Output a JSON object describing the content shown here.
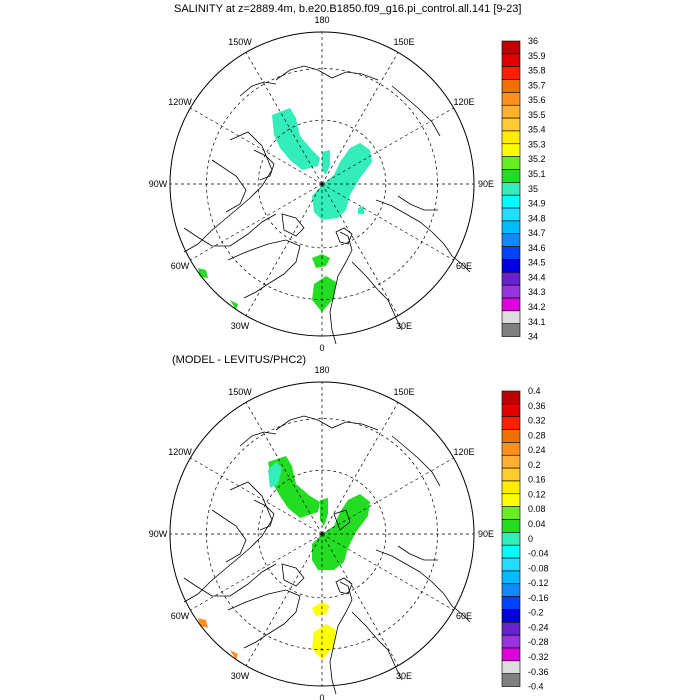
{
  "panels": [
    {
      "title": "SALINITY at z=2889.4m, b.e20.B1850.f09_g16.pi_control.all.141 [9-23]",
      "lon_labels": [
        "180",
        "150E",
        "120E",
        "90E",
        "60E",
        "30E",
        "0",
        "30W",
        "60W",
        "90W",
        "120W",
        "150W"
      ],
      "colorbar": {
        "labels": [
          "36",
          "35.9",
          "35.8",
          "35.7",
          "35.6",
          "35.5",
          "35.4",
          "35.3",
          "35.2",
          "35.1",
          "35",
          "34.9",
          "34.8",
          "34.7",
          "34.6",
          "34.5",
          "34.4",
          "34.3",
          "34.2",
          "34.1",
          "34"
        ],
        "colors": [
          "#c00000",
          "#e00000",
          "#ff2000",
          "#f07000",
          "#ff9020",
          "#ffb030",
          "#ffcc30",
          "#ffee00",
          "#ffff00",
          "#66ee22",
          "#22dd22",
          "#33eebb",
          "#00ffff",
          "#22ddff",
          "#00bbff",
          "#1188ff",
          "#0044ff",
          "#0000dd",
          "#6622cc",
          "#9933dd",
          "#dd00dd",
          "#dddddd",
          "#808080"
        ]
      },
      "field_color": "#33eebb",
      "green_color": "#22dd22"
    },
    {
      "title": "(MODEL - LEVITUS/PHC2)",
      "lon_labels": [
        "180",
        "150E",
        "120E",
        "90E",
        "60E",
        "30E",
        "0",
        "30W",
        "60W",
        "90W",
        "120W",
        "150W"
      ],
      "colorbar": {
        "labels": [
          "0.4",
          "0.36",
          "0.32",
          "0.28",
          "0.24",
          "0.2",
          "0.16",
          "0.12",
          "0.08",
          "0.04",
          "0",
          "-0.04",
          "-0.08",
          "-0.12",
          "-0.16",
          "-0.2",
          "-0.24",
          "-0.28",
          "-0.32",
          "-0.36",
          "-0.4"
        ],
        "colors": [
          "#c00000",
          "#e00000",
          "#ff2000",
          "#f07000",
          "#ff9020",
          "#ffb030",
          "#ffcc30",
          "#ffee00",
          "#ffff00",
          "#66ee22",
          "#22dd22",
          "#33eebb",
          "#00ffff",
          "#22ddff",
          "#00bbff",
          "#1188ff",
          "#0044ff",
          "#0000dd",
          "#6622cc",
          "#9933dd",
          "#dd00dd",
          "#dddddd",
          "#808080"
        ]
      },
      "field_color": "#22dd22",
      "anomaly_pos_color": "#ffff00",
      "anomaly_neg_color": "#33eebb",
      "anomaly_orange": "#ff9020"
    }
  ]
}
